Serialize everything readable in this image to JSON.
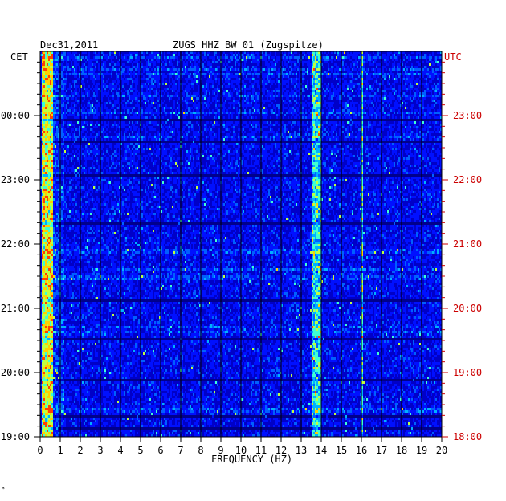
{
  "header": {
    "date": "Dec31,2011",
    "station": "ZUGS HHZ BW 01 (Zugspitze)"
  },
  "left_axis_label": "CET",
  "right_axis_label": "UTC",
  "footnote": "*",
  "colors": {
    "background_blue": "#0000b8",
    "grid": "#000000",
    "utc_label": "#cc0000",
    "frame_text": "#000000"
  },
  "chart_data": {
    "type": "heatmap",
    "title": "ZUGS HHZ BW 01 (Zugspitze)",
    "xlabel": "FREQUENCY (HZ)",
    "ylabel": "",
    "x_range": [
      0,
      20
    ],
    "x_ticks": [
      "0",
      "1",
      "2",
      "3",
      "4",
      "5",
      "6",
      "7",
      "8",
      "9",
      "10",
      "11",
      "12",
      "13",
      "14",
      "15",
      "16",
      "17",
      "18",
      "19",
      "20"
    ],
    "y_range_hours_cet": [
      19,
      25
    ],
    "left_time_ticks": [
      "19:00",
      "20:00",
      "21:00",
      "22:00",
      "23:00",
      "00:00"
    ],
    "right_time_ticks": [
      "18:00",
      "19:00",
      "20:00",
      "21:00",
      "22:00",
      "23:00"
    ],
    "grid": true,
    "colormap": [
      "#00008c",
      "#0000c8",
      "#0010ff",
      "#0060ff",
      "#00b0ff",
      "#40ffd0",
      "#c0ff40",
      "#ffd000",
      "#ff4000"
    ],
    "high_energy_bands_hz": [
      {
        "from": 0.1,
        "to": 0.6,
        "level": "high"
      },
      {
        "from": 13.5,
        "to": 14.0,
        "level": "medium"
      },
      {
        "from": 16.0,
        "to": 16.1,
        "level": "medium"
      }
    ]
  }
}
